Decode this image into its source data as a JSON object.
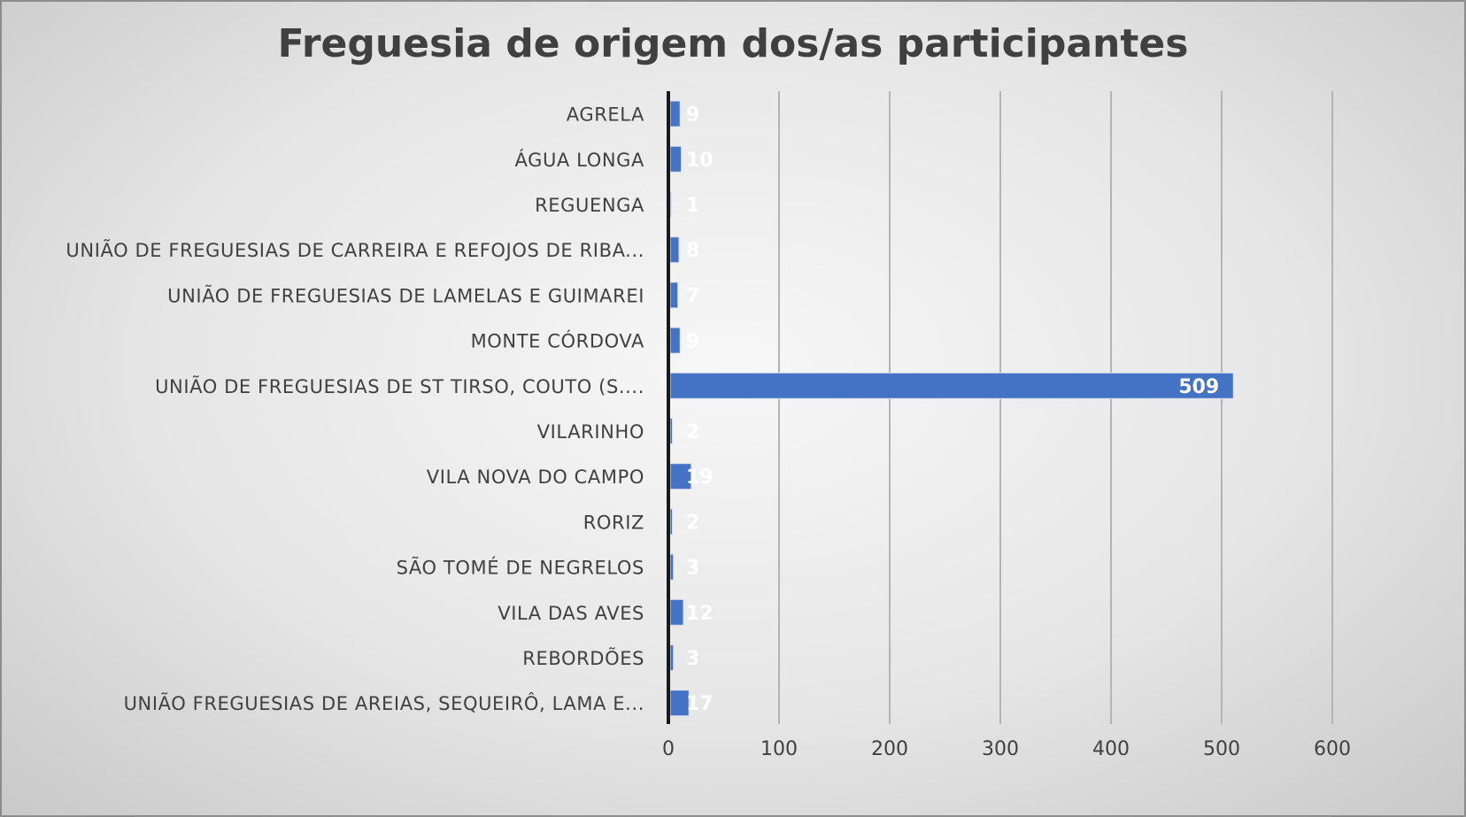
{
  "chart_data": {
    "type": "bar",
    "orientation": "horizontal",
    "title": "Freguesia de origem dos/as participantes",
    "categories": [
      "AGRELA",
      "ÁGUA LONGA",
      "REGUENGA",
      "UNIÃO DE FREGUESIAS DE CARREIRA E REFOJOS DE RIBA...",
      "UNIÃO DE FREGUESIAS DE LAMELAS E GUIMAREI",
      "MONTE CÓRDOVA",
      "UNIÃO DE FREGUESIAS DE ST TIRSO, COUTO (S....",
      "VILARINHO",
      "VILA NOVA DO CAMPO",
      "RORIZ",
      "SÃO TOMÉ DE NEGRELOS",
      "VILA DAS AVES",
      "REBORDÕES",
      "UNIÃO FREGUESIAS DE AREIAS, SEQUEIRÔ, LAMA E..."
    ],
    "values": [
      9,
      10,
      1,
      8,
      7,
      9,
      509,
      2,
      19,
      2,
      3,
      12,
      3,
      17
    ],
    "data_labels": [
      "9",
      "10",
      "1",
      "8",
      "7",
      "9",
      "509",
      "2",
      "19",
      "2",
      "3",
      "12",
      "3",
      "17"
    ],
    "xlim": [
      0,
      600
    ],
    "xticks": [
      "0",
      "100",
      "200",
      "300",
      "400",
      "500",
      "600"
    ],
    "xlabel": "",
    "ylabel": "",
    "grid": "vertical",
    "legend": "none",
    "bar_color": "#4472c4"
  }
}
